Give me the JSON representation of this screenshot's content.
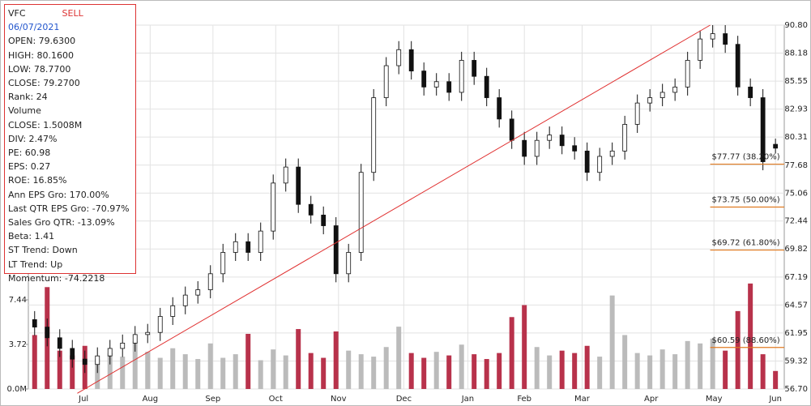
{
  "chart_data": {
    "type": "candlestick",
    "info": {
      "ticker": "VFC",
      "signal": "SELL",
      "date": "06/07/2021",
      "lines": [
        "OPEN: 79.6300",
        "HIGH: 80.1600",
        "LOW: 78.7700",
        "CLOSE: 79.2700",
        "Rank: 24",
        "Volume",
        "CLOSE: 1.5008M",
        "DIV: 2.47%",
        "PE: 60.98",
        "EPS: 0.27",
        "ROE: 16.85%",
        "Ann EPS Gro: 170.00%",
        "Last QTR EPS Gro: -70.97%",
        "Sales Gro QTR: -13.09%",
        "Beta: 1.41",
        "ST Trend: Down",
        "LT Trend: Up",
        "Momentum: -74.2218"
      ]
    },
    "x": [
      0,
      1,
      2,
      3,
      4,
      5,
      6,
      7,
      8,
      9,
      10,
      11,
      12,
      13,
      14,
      15,
      16,
      17,
      18,
      19,
      20,
      21,
      22,
      23,
      24,
      25,
      26,
      27,
      28,
      29,
      30,
      31,
      32,
      33,
      34,
      35,
      36,
      37,
      38,
      39,
      40,
      41,
      42,
      43,
      44,
      45,
      46,
      47,
      48,
      49,
      50,
      51,
      52,
      53,
      54,
      55,
      56,
      57,
      58,
      59
    ],
    "open": [
      63.2,
      62.5,
      61.5,
      60.5,
      59.5,
      59.0,
      59.8,
      60.5,
      61.0,
      61.8,
      62.0,
      63.5,
      64.5,
      65.5,
      66.0,
      67.5,
      69.5,
      70.5,
      69.5,
      71.5,
      76.0,
      77.5,
      74.0,
      73.0,
      72.0,
      67.5,
      69.5,
      77.0,
      84.0,
      87.0,
      88.5,
      86.5,
      85.0,
      85.5,
      84.5,
      87.5,
      86.0,
      84.0,
      82.0,
      80.0,
      78.5,
      80.0,
      80.5,
      79.5,
      79.0,
      77.0,
      78.5,
      79.0,
      81.5,
      83.5,
      84.0,
      84.5,
      85.0,
      87.5,
      89.5,
      90.0,
      89.0,
      85.0,
      84.0,
      79.63
    ],
    "high": [
      64.0,
      63.3,
      62.3,
      61.3,
      60.3,
      60.6,
      61.3,
      61.8,
      62.6,
      62.8,
      64.3,
      65.3,
      66.3,
      66.8,
      68.3,
      70.3,
      71.3,
      71.3,
      72.3,
      76.8,
      78.3,
      78.3,
      74.8,
      73.8,
      72.8,
      70.3,
      77.8,
      84.8,
      87.8,
      89.3,
      89.3,
      87.3,
      86.3,
      86.3,
      88.3,
      88.3,
      86.8,
      84.8,
      82.8,
      80.8,
      80.8,
      81.3,
      81.3,
      80.3,
      79.8,
      79.3,
      79.8,
      82.3,
      84.3,
      84.8,
      85.3,
      85.8,
      88.3,
      90.3,
      90.8,
      90.8,
      89.8,
      85.8,
      84.8,
      80.16
    ],
    "low": [
      61.7,
      60.7,
      59.7,
      58.7,
      58.2,
      58.2,
      59.0,
      59.7,
      60.2,
      61.0,
      61.2,
      62.7,
      63.7,
      64.7,
      65.2,
      66.7,
      68.7,
      68.7,
      68.7,
      70.7,
      75.2,
      73.2,
      72.2,
      71.2,
      66.7,
      66.7,
      68.7,
      76.2,
      83.2,
      86.2,
      85.7,
      84.2,
      84.2,
      83.7,
      83.7,
      85.2,
      83.2,
      81.2,
      79.2,
      77.7,
      77.7,
      79.2,
      78.7,
      78.2,
      76.2,
      76.2,
      77.7,
      78.2,
      80.7,
      82.7,
      83.2,
      83.7,
      84.2,
      86.7,
      88.7,
      88.2,
      84.2,
      83.2,
      77.2,
      78.77
    ],
    "close": [
      62.5,
      61.5,
      60.5,
      59.5,
      59.0,
      59.8,
      60.5,
      61.0,
      61.8,
      62.0,
      63.5,
      64.5,
      65.5,
      66.0,
      67.5,
      69.5,
      70.5,
      69.5,
      71.5,
      76.0,
      77.5,
      74.0,
      73.0,
      72.0,
      67.5,
      69.5,
      77.0,
      84.0,
      87.0,
      88.5,
      86.5,
      85.0,
      85.5,
      84.5,
      87.5,
      86.0,
      84.0,
      82.0,
      80.0,
      78.5,
      80.0,
      80.5,
      79.5,
      79.0,
      77.0,
      78.5,
      79.0,
      81.5,
      83.5,
      84.0,
      84.5,
      85.0,
      87.5,
      89.5,
      90.0,
      89.0,
      85.0,
      84.0,
      78.0,
      79.27
    ],
    "volume": [
      4.5,
      8.5,
      3.2,
      2.8,
      3.6,
      2.5,
      3.0,
      2.7,
      4.0,
      3.1,
      2.6,
      3.4,
      2.9,
      2.5,
      3.8,
      2.6,
      2.9,
      4.6,
      2.4,
      3.3,
      2.8,
      5.0,
      3.0,
      2.6,
      4.8,
      3.2,
      2.9,
      2.7,
      3.5,
      5.2,
      3.0,
      2.6,
      3.1,
      2.8,
      3.7,
      2.9,
      2.5,
      3.0,
      6.0,
      7.0,
      3.5,
      2.8,
      3.2,
      3.0,
      3.6,
      2.7,
      7.8,
      4.5,
      3.0,
      2.8,
      3.3,
      2.9,
      4.0,
      3.8,
      4.2,
      3.2,
      6.5,
      8.8,
      2.9,
      1.5008
    ],
    "xticks": [
      {
        "value": 3.9,
        "label": "Jul"
      },
      {
        "value": 9.2,
        "label": "Aug"
      },
      {
        "value": 14.2,
        "label": "Sep"
      },
      {
        "value": 19.2,
        "label": "Oct"
      },
      {
        "value": 24.2,
        "label": "Nov"
      },
      {
        "value": 29.4,
        "label": "Dec"
      },
      {
        "value": 34.5,
        "label": "Jan"
      },
      {
        "value": 39,
        "label": "Feb"
      },
      {
        "value": 43.6,
        "label": "Mar"
      },
      {
        "value": 49.1,
        "label": "Apr"
      },
      {
        "value": 54.1,
        "label": "May"
      },
      {
        "value": 59,
        "label": "Jun"
      }
    ],
    "xlim": [
      -0.5,
      59.7
    ],
    "ylim": [
      56.7,
      90.8
    ],
    "yticks": [
      {
        "value": 90.8,
        "label": "90.80"
      },
      88.18,
      85.55,
      82.93,
      80.31,
      77.68,
      75.06,
      72.44,
      69.82,
      67.19,
      64.57,
      61.95,
      59.32,
      {
        "value": 56.7,
        "label": "56.70"
      }
    ],
    "vlim": [
      0,
      30.36
    ],
    "vticks": [
      {
        "value": 0,
        "label": "0.0M"
      },
      3.72,
      7.44
    ],
    "trendline": {
      "x": [
        3.4,
        53.8
      ],
      "y": [
        56.3,
        90.8
      ]
    },
    "fib": [
      {
        "value": 77.77,
        "label": "$77.77 (38.20%)"
      },
      {
        "value": 73.75,
        "label": "$73.75 (50.00%)"
      },
      {
        "value": 69.72,
        "label": "$69.72 (61.80%)"
      },
      {
        "value": 60.59,
        "label": "$60.59 (88.60%)"
      }
    ],
    "grid": true
  }
}
